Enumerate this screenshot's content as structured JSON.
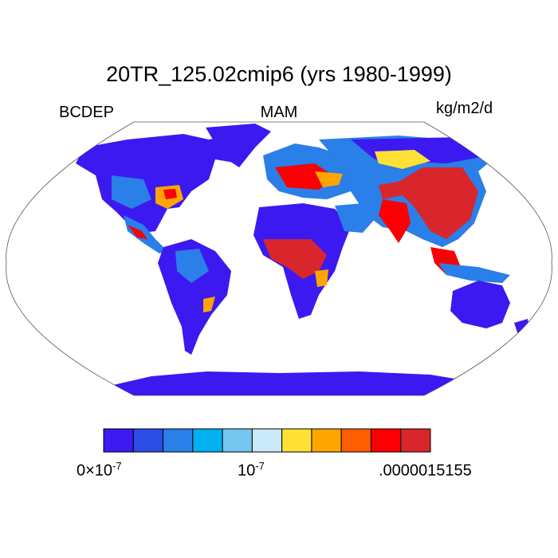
{
  "title": "20TR_125.02cmip6 (yrs 1980-1999)",
  "variable": "BCDEP",
  "season": "MAM",
  "units": "kg/m2/d",
  "colorbar": {
    "colors": [
      "#3c19f0",
      "#2c4ce6",
      "#2a7fe8",
      "#00b0f0",
      "#74c6ee",
      "#c9e8f8",
      "#ffe135",
      "#ffa500",
      "#ff5e00",
      "#fa0005",
      "#d8262c"
    ],
    "ticks": [
      {
        "base": "0×10",
        "exp": "-7"
      },
      {
        "base": "10",
        "exp": "-7"
      },
      {
        "base": ".0000015155",
        "exp": ""
      }
    ]
  }
}
